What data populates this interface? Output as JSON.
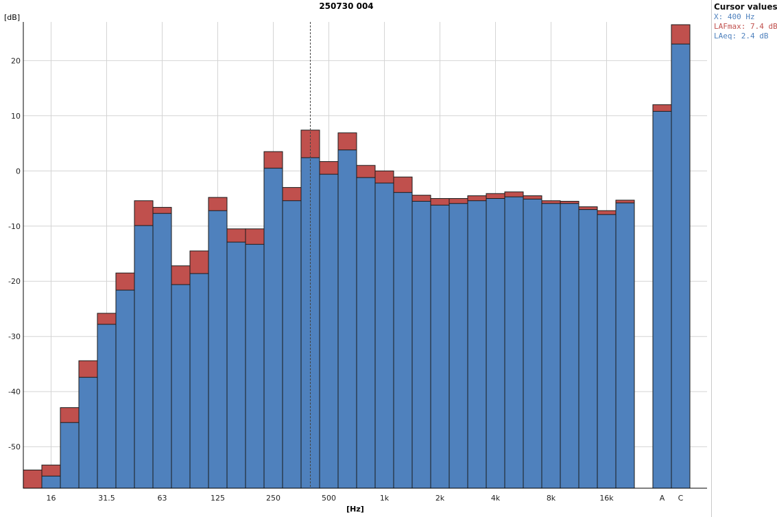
{
  "chart_data": {
    "type": "bar",
    "title": "250730 004",
    "ylabel": "[dB]",
    "xlabel": "[Hz]",
    "ylim": [
      -57.5,
      27
    ],
    "yticks": [
      20,
      10,
      0,
      -10,
      -20,
      -30,
      -40,
      -50
    ],
    "grid": true,
    "categories": [
      "12.5",
      "16",
      "20",
      "25",
      "31.5",
      "40",
      "50",
      "63",
      "80",
      "100",
      "125",
      "160",
      "200",
      "250",
      "315",
      "400",
      "500",
      "630",
      "800",
      "1k",
      "1.25k",
      "1.6k",
      "2k",
      "2.5k",
      "3.15k",
      "4k",
      "5k",
      "6.3k",
      "8k",
      "10k",
      "12.5k",
      "16k",
      "20k",
      "A",
      "C"
    ],
    "x_tick_labels": [
      "16",
      "31.5",
      "63",
      "125",
      "250",
      "500",
      "1k",
      "2k",
      "4k",
      "8k",
      "16k",
      "A",
      "C"
    ],
    "series": [
      {
        "name": "LAFmax",
        "color": "#c0504d",
        "values": [
          -54.2,
          -53.3,
          -42.9,
          -34.4,
          -25.8,
          -18.5,
          -5.4,
          -6.6,
          -17.2,
          -14.5,
          -4.8,
          -10.5,
          -10.5,
          3.5,
          -3,
          7.4,
          1.7,
          6.9,
          1,
          0,
          -1.1,
          -4.4,
          -5,
          -5,
          -4.5,
          -4.1,
          -3.8,
          -4.5,
          -5.4,
          -5.5,
          -6.5,
          -7.2,
          -5.3,
          12,
          26.5
        ]
      },
      {
        "name": "LAeq",
        "color": "#4f81bd",
        "values": [
          null,
          -55.3,
          -45.6,
          -37.4,
          -27.8,
          -21.6,
          -9.9,
          -7.7,
          -20.6,
          -18.6,
          -7.2,
          -12.9,
          -13.3,
          0.5,
          -5.4,
          2.4,
          -0.6,
          3.8,
          -1.2,
          -2.2,
          -3.9,
          -5.5,
          -6.2,
          -5.9,
          -5.4,
          -5,
          -4.7,
          -5.1,
          -5.9,
          -5.9,
          -7,
          -7.9,
          -5.8,
          10.8,
          23
        ]
      }
    ],
    "cursor_category": "400"
  },
  "cursor_panel": {
    "title": "Cursor values",
    "rows": [
      {
        "text": "X: 400 Hz",
        "color": "#4f81bd"
      },
      {
        "text": "LAFmax: 7.4 dB",
        "color": "#c0504d"
      },
      {
        "text": "LAeq: 2.4 dB",
        "color": "#4f81bd"
      }
    ]
  }
}
